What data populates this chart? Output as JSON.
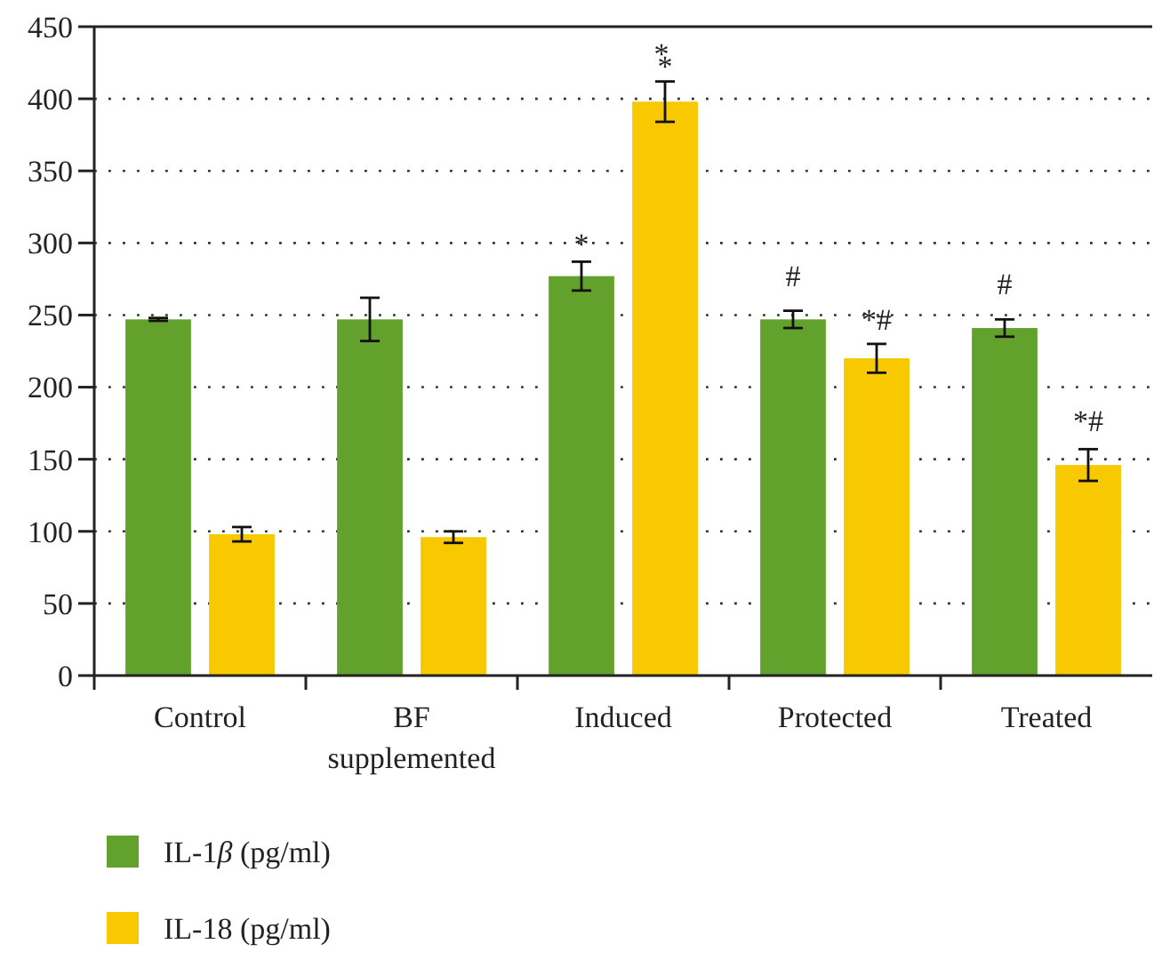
{
  "chart_data": {
    "type": "bar",
    "categories": [
      "Control",
      "BF supplemented",
      "Induced",
      "Protected",
      "Treated"
    ],
    "series": [
      {
        "name": "IL-1β (pg/ml)",
        "color": "#62a22c",
        "values": [
          247,
          247,
          277,
          247,
          241
        ],
        "errors": [
          1,
          15,
          10,
          6,
          6
        ]
      },
      {
        "name": "IL-18 (pg/ml)",
        "color": "#f8c800",
        "values": [
          98,
          96,
          398,
          220,
          146
        ],
        "errors": [
          5,
          4,
          14,
          10,
          11
        ]
      }
    ],
    "ylim": [
      0,
      450
    ],
    "yticks": [
      0,
      50,
      100,
      150,
      200,
      250,
      300,
      350,
      400,
      450
    ],
    "grid": "y",
    "legend": "bottom left",
    "annotations": [
      "*",
      "**",
      "#",
      "*#",
      "#",
      "*#"
    ]
  }
}
